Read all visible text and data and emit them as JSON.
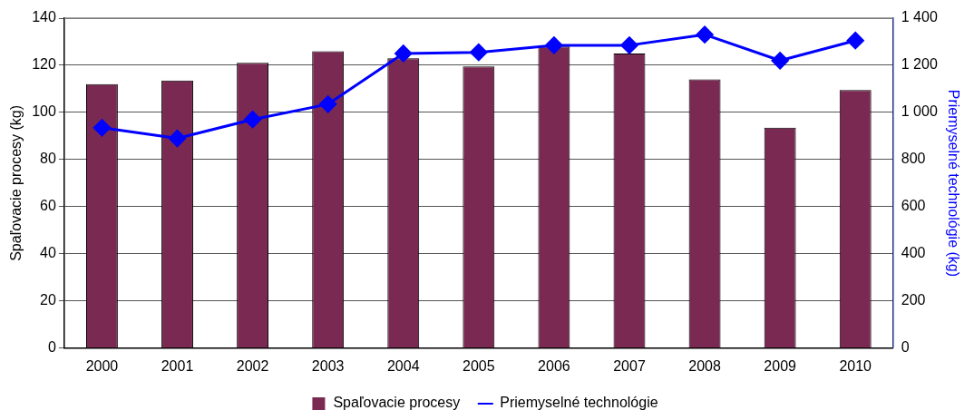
{
  "chart_data": {
    "type": "bar",
    "ylabel": "Spaľovacie procesy (kg)",
    "y2label": "Priemyselné technológie (kg)",
    "categories": [
      "2000",
      "2001",
      "2002",
      "2003",
      "2004",
      "2005",
      "2006",
      "2007",
      "2008",
      "2009",
      "2010"
    ],
    "series": [
      {
        "name": "Spaľovacie procesy",
        "color": "#7a2a52",
        "values": [
          112,
          113.5,
          121,
          126,
          123,
          119.5,
          128,
          125,
          114,
          93.5,
          109.5
        ]
      },
      {
        "name": "Priemyselné technológie",
        "type": "line",
        "axis": "y2",
        "color": "#0000ff",
        "marker": "diamond",
        "values": [
          935,
          890,
          970,
          1035,
          1250,
          1255,
          1285,
          1285,
          1330,
          1220,
          1305
        ]
      }
    ],
    "ylim": [
      0,
      140
    ],
    "yticks": [
      0,
      20,
      40,
      60,
      80,
      100,
      120,
      140
    ],
    "y2lim": [
      0,
      1400
    ],
    "y2ticks": [
      0,
      200,
      400,
      600,
      800,
      {
        "value": 1000,
        "label": "1 000"
      },
      {
        "value": 1200,
        "label": "1 200"
      },
      {
        "value": 1400,
        "label": "1 400"
      }
    ],
    "grid": "y",
    "legend": "bottom"
  }
}
